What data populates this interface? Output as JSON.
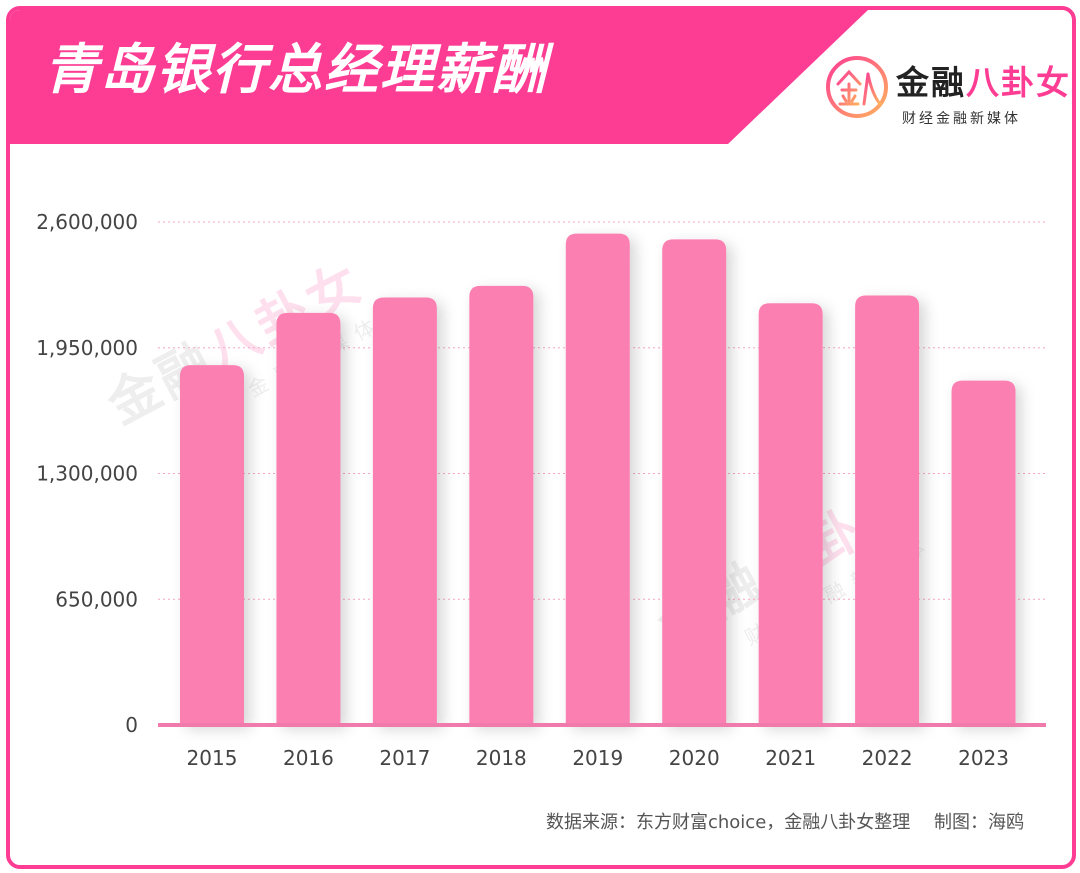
{
  "header": {
    "title": "青岛银行总经理薪酬"
  },
  "brand": {
    "name_part1": "金融",
    "name_part2": "八卦女",
    "tagline": "财经金融新媒体",
    "accent_color": "#fd3d94",
    "mark_icon": "jin-ba-logo-icon"
  },
  "chart_data": {
    "type": "bar",
    "title": "青岛银行总经理薪酬",
    "xlabel": "",
    "ylabel": "",
    "categories": [
      "2015",
      "2016",
      "2017",
      "2018",
      "2019",
      "2020",
      "2021",
      "2022",
      "2023"
    ],
    "values": [
      1860000,
      2130000,
      2210000,
      2270000,
      2540000,
      2510000,
      2180000,
      2220000,
      1780000
    ],
    "yticks": [
      0,
      650000,
      1300000,
      1950000,
      2600000
    ],
    "ytick_labels": [
      "0",
      "650,000",
      "1,300,000",
      "1,950,000",
      "2,600,000"
    ],
    "ylim": [
      0,
      2600000
    ],
    "bar_color": "#fc7fb1",
    "grid": "dotted horizontal",
    "legend": "none"
  },
  "footer": {
    "source": "数据来源：东方财富choice，金融八卦女整理　 制图：海鸥"
  }
}
